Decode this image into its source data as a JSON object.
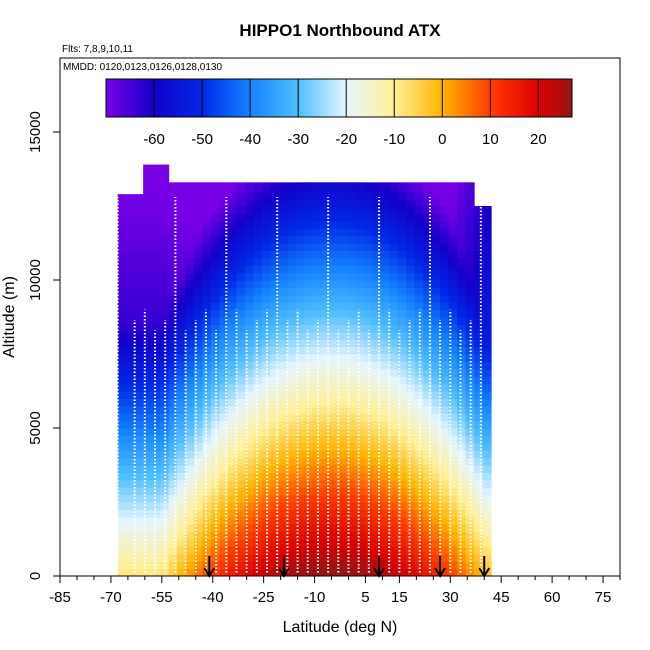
{
  "chart_data": {
    "type": "heatmap",
    "title": "HIPPO1 Northbound ATX",
    "flights_label": "Flts: 7,8,9,10,11",
    "dates_label": "MMDD: 0120,0123,0126,0128,0130",
    "xlabel": "Latitude (deg N)",
    "ylabel": "Altitude (m)",
    "xlim": [
      -85,
      80
    ],
    "ylim": [
      0,
      17500
    ],
    "x_ticks": [
      -85,
      -70,
      -55,
      -40,
      -25,
      -10,
      5,
      15,
      30,
      45,
      60,
      75
    ],
    "y_ticks": [
      0,
      5000,
      10000,
      15000
    ],
    "colorbar": {
      "label_values": [
        -60,
        -50,
        -40,
        -30,
        -20,
        -10,
        0,
        10,
        20
      ],
      "range": [
        -70,
        27
      ]
    },
    "data_extent": {
      "lat_min": -68,
      "lat_max": 42,
      "alt_max": 13500
    },
    "profile_latitudes": [
      -68,
      -63,
      -60,
      -57,
      -54,
      -51,
      -48,
      -45,
      -42,
      -39,
      -36,
      -33,
      -30,
      -27,
      -24,
      -21,
      -18,
      -15,
      -12,
      -9,
      -6,
      -3,
      0,
      3,
      6,
      9,
      12,
      15,
      18,
      21,
      24,
      27,
      30,
      33,
      36,
      39
    ],
    "flight_end_arrows": [
      -41,
      -19,
      9,
      27,
      40
    ]
  }
}
